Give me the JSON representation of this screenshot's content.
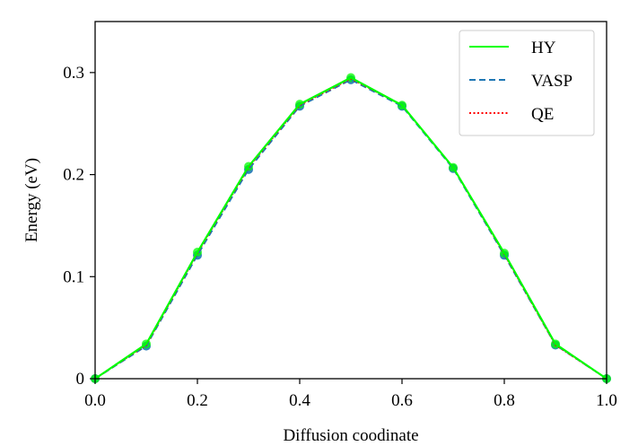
{
  "chart_data": {
    "type": "line",
    "xlabel": "Diffusion coodinate",
    "ylabel": "Energy (eV)",
    "xlim": [
      0.0,
      1.0
    ],
    "ylim": [
      0.0,
      0.35
    ],
    "xticks": [
      0.0,
      0.2,
      0.4,
      0.6,
      0.8,
      1.0
    ],
    "xtick_labels": [
      "0.0",
      "0.2",
      "0.4",
      "0.6",
      "0.8",
      "1.0"
    ],
    "yticks": [
      0.0,
      0.1,
      0.2,
      0.3
    ],
    "ytick_labels": [
      "0",
      "0.1",
      "0.2",
      "0.3"
    ],
    "grid": false,
    "legend_position": "top-right",
    "x": [
      0.0,
      0.1,
      0.2,
      0.3,
      0.4,
      0.5,
      0.6,
      0.7,
      0.8,
      0.9,
      1.0
    ],
    "series": [
      {
        "name": "HY",
        "color": "#00ff00",
        "style": "solid",
        "values": [
          0.0,
          0.034,
          0.124,
          0.208,
          0.269,
          0.295,
          0.268,
          0.207,
          0.123,
          0.034,
          0.0
        ]
      },
      {
        "name": "VASP",
        "color": "#1f77b4",
        "style": "dashed",
        "values": [
          0.0,
          0.032,
          0.121,
          0.205,
          0.267,
          0.293,
          0.267,
          0.206,
          0.121,
          0.033,
          0.0
        ]
      },
      {
        "name": "QE",
        "color": "#ff0000",
        "style": "dotted",
        "values": [
          0.0,
          0.033,
          0.123,
          0.207,
          0.268,
          0.294,
          0.268,
          0.207,
          0.122,
          0.033,
          0.0
        ]
      }
    ]
  }
}
